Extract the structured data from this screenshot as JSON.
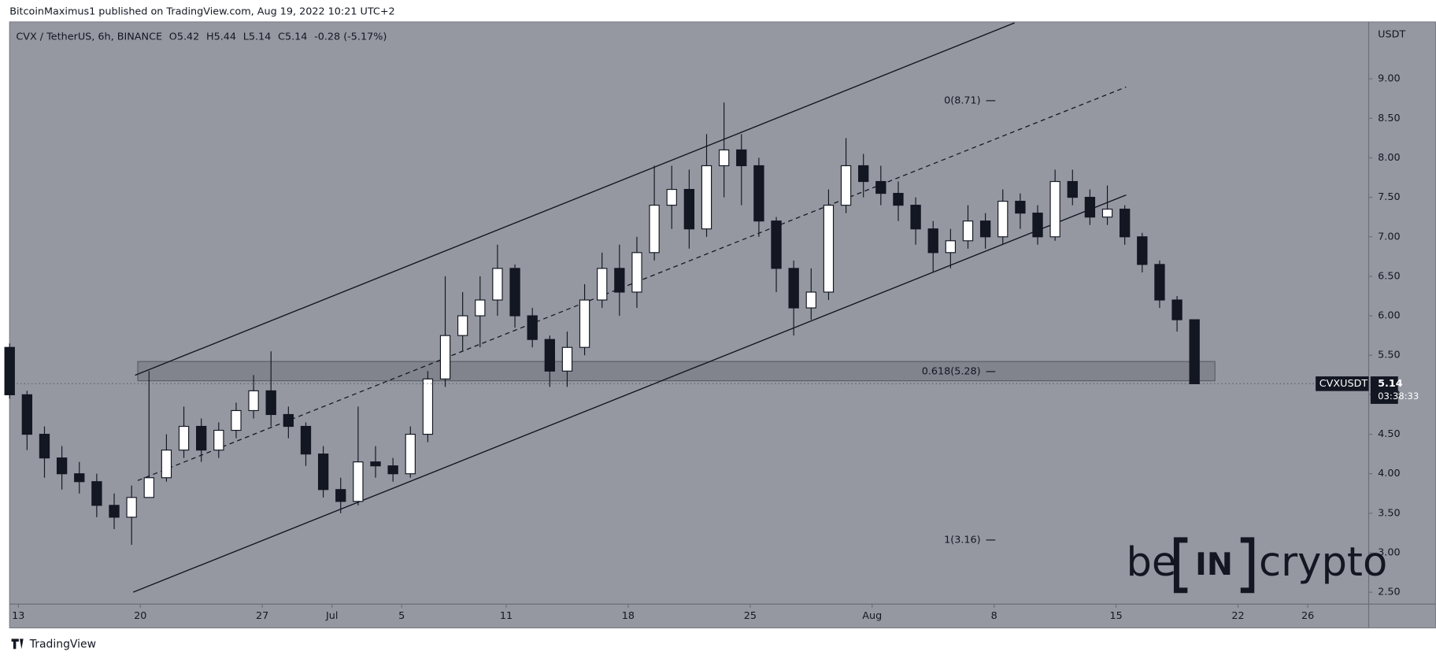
{
  "header": {
    "publisher": "BitcoinMaximus1 published on TradingView.com, Aug 19, 2022 10:21 UTC+2"
  },
  "chart_data": {
    "type": "candlestick",
    "legend": {
      "symbol": "CVX / TetherUS, 6h, BINANCE",
      "o_label": "O",
      "o": "5.42",
      "h_label": "H",
      "h": "5.44",
      "l_label": "L",
      "l": "5.14",
      "c_label": "C",
      "c": "5.14",
      "change": "-0.28 (-5.17%)"
    },
    "x": [
      "2022-06-12",
      "2022-06-13",
      "2022-06-14",
      "2022-06-15",
      "2022-06-16",
      "2022-06-17",
      "2022-06-18",
      "2022-06-19",
      "2022-06-20",
      "2022-06-21",
      "2022-06-22",
      "2022-06-23",
      "2022-06-24",
      "2022-06-25",
      "2022-06-26",
      "2022-06-27",
      "2022-06-28",
      "2022-06-29",
      "2022-06-30",
      "2022-07-01",
      "2022-07-02",
      "2022-07-03",
      "2022-07-04",
      "2022-07-05",
      "2022-07-06",
      "2022-07-07",
      "2022-07-08",
      "2022-07-09",
      "2022-07-10",
      "2022-07-11",
      "2022-07-12",
      "2022-07-13",
      "2022-07-14",
      "2022-07-15",
      "2022-07-16",
      "2022-07-17",
      "2022-07-18",
      "2022-07-19",
      "2022-07-20",
      "2022-07-21",
      "2022-07-22",
      "2022-07-23",
      "2022-07-24",
      "2022-07-25",
      "2022-07-26",
      "2022-07-27",
      "2022-07-28",
      "2022-07-29",
      "2022-07-30",
      "2022-07-31",
      "2022-08-01",
      "2022-08-02",
      "2022-08-03",
      "2022-08-04",
      "2022-08-05",
      "2022-08-06",
      "2022-08-07",
      "2022-08-08",
      "2022-08-09",
      "2022-08-10",
      "2022-08-11",
      "2022-08-12",
      "2022-08-13",
      "2022-08-14",
      "2022-08-15",
      "2022-08-16",
      "2022-08-17",
      "2022-08-18",
      "2022-08-19"
    ],
    "open": [
      5.6,
      5.0,
      4.5,
      4.2,
      4.0,
      3.9,
      3.6,
      3.45,
      3.7,
      3.95,
      4.3,
      4.6,
      4.3,
      4.55,
      4.8,
      5.05,
      4.75,
      4.6,
      4.25,
      3.8,
      3.65,
      4.15,
      4.1,
      4.0,
      4.5,
      5.2,
      5.75,
      6.0,
      6.2,
      6.6,
      6.0,
      5.7,
      5.3,
      5.6,
      6.2,
      6.6,
      6.3,
      6.8,
      7.4,
      7.6,
      7.1,
      7.9,
      8.1,
      7.9,
      7.2,
      6.6,
      6.1,
      6.3,
      7.4,
      7.9,
      7.7,
      7.55,
      7.4,
      7.1,
      6.8,
      6.95,
      7.2,
      7.0,
      7.45,
      7.3,
      7.0,
      7.7,
      7.5,
      7.25,
      7.35,
      7.0,
      6.65,
      6.2,
      5.95
    ],
    "high": [
      5.65,
      5.05,
      4.6,
      4.35,
      4.15,
      4.0,
      3.75,
      3.85,
      5.3,
      4.5,
      4.85,
      4.7,
      4.65,
      4.9,
      5.25,
      5.55,
      4.85,
      4.65,
      4.35,
      3.95,
      4.85,
      4.35,
      4.2,
      4.6,
      5.3,
      6.5,
      6.3,
      6.5,
      6.9,
      6.65,
      6.1,
      5.75,
      5.8,
      6.4,
      6.8,
      6.9,
      7.0,
      7.9,
      7.9,
      7.85,
      8.3,
      8.7,
      8.3,
      8.0,
      7.25,
      6.7,
      6.6,
      7.6,
      8.25,
      8.05,
      7.9,
      7.7,
      7.5,
      7.2,
      7.1,
      7.4,
      7.3,
      7.6,
      7.55,
      7.4,
      7.85,
      7.85,
      7.6,
      7.65,
      7.4,
      7.05,
      6.7,
      6.25,
      5.95
    ],
    "low": [
      4.95,
      4.3,
      3.95,
      3.8,
      3.75,
      3.45,
      3.3,
      3.1,
      3.7,
      3.9,
      4.2,
      4.15,
      4.2,
      4.45,
      4.7,
      4.6,
      4.45,
      4.1,
      3.7,
      3.5,
      3.6,
      3.95,
      3.9,
      3.95,
      4.4,
      5.1,
      5.55,
      5.6,
      6.0,
      5.85,
      5.6,
      5.1,
      5.1,
      5.5,
      6.1,
      6.0,
      6.1,
      6.7,
      7.1,
      6.85,
      7.0,
      7.5,
      7.4,
      7.0,
      6.3,
      5.75,
      5.95,
      6.2,
      7.3,
      7.5,
      7.4,
      7.2,
      6.9,
      6.55,
      6.6,
      6.85,
      6.85,
      6.9,
      7.1,
      6.9,
      6.95,
      7.4,
      7.15,
      7.15,
      6.9,
      6.55,
      6.1,
      5.8,
      5.14
    ],
    "close": [
      5.0,
      4.5,
      4.2,
      4.0,
      3.9,
      3.6,
      3.45,
      3.7,
      3.95,
      4.3,
      4.6,
      4.3,
      4.55,
      4.8,
      5.05,
      4.75,
      4.6,
      4.25,
      3.8,
      3.65,
      4.15,
      4.1,
      4.0,
      4.5,
      5.2,
      5.75,
      6.0,
      6.2,
      6.6,
      6.0,
      5.7,
      5.3,
      5.6,
      6.2,
      6.6,
      6.3,
      6.8,
      7.4,
      7.6,
      7.1,
      7.9,
      8.1,
      7.9,
      7.2,
      6.6,
      6.1,
      6.3,
      7.4,
      7.9,
      7.7,
      7.55,
      7.4,
      7.1,
      6.8,
      6.95,
      7.2,
      7.0,
      7.45,
      7.3,
      7.0,
      7.7,
      7.5,
      7.25,
      7.35,
      7.0,
      6.65,
      6.2,
      5.95,
      5.14
    ],
    "up_color": "#ffffff",
    "down_color": "#131722",
    "xlim": [
      "2022-06-12T12:00:00Z",
      "2022-08-29T12:00:00Z"
    ],
    "xticks": [
      {
        "value": "2022-06-13",
        "label": "13"
      },
      {
        "value": "2022-06-20",
        "label": "20"
      },
      {
        "value": "2022-06-27",
        "label": "27"
      },
      {
        "value": "2022-07-01",
        "label": "Jul"
      },
      {
        "value": "2022-07-05",
        "label": "5"
      },
      {
        "value": "2022-07-11",
        "label": "11"
      },
      {
        "value": "2022-07-18",
        "label": "18"
      },
      {
        "value": "2022-07-25",
        "label": "25"
      },
      {
        "value": "2022-08-01",
        "label": "Aug"
      },
      {
        "value": "2022-08-08",
        "label": "8"
      },
      {
        "value": "2022-08-15",
        "label": "15"
      },
      {
        "value": "2022-08-22",
        "label": "22"
      },
      {
        "value": "2022-08-26",
        "label": "26"
      }
    ],
    "ylim": [
      2.35,
      9.72
    ],
    "yticks": [
      {
        "value": 2.5,
        "label": "2.50"
      },
      {
        "value": 3,
        "label": "3.00"
      },
      {
        "value": 3.5,
        "label": "3.50"
      },
      {
        "value": 4,
        "label": "4.00"
      },
      {
        "value": 4.5,
        "label": "4.50"
      },
      {
        "value": 5,
        "label": "5.00"
      },
      {
        "value": 5.5,
        "label": "5.50"
      },
      {
        "value": 6,
        "label": "6.00"
      },
      {
        "value": 6.5,
        "label": "6.50"
      },
      {
        "value": 7,
        "label": "7.00"
      },
      {
        "value": 7.5,
        "label": "7.50"
      },
      {
        "value": 8,
        "label": "8.00"
      },
      {
        "value": 8.5,
        "label": "8.50"
      },
      {
        "value": 9,
        "label": "9.00"
      }
    ],
    "y_axis_label": "USDT",
    "annotations": [
      "0(8.71)",
      "0.618(5.28)",
      "1(3.16)"
    ],
    "last_price": {
      "symbol": "CVXUSDT",
      "value": 5.14,
      "countdown": "03:38:33"
    }
  },
  "watermark": {
    "left": "be",
    "mid": "IN",
    "right": "crypto"
  },
  "footer": "TradingView"
}
